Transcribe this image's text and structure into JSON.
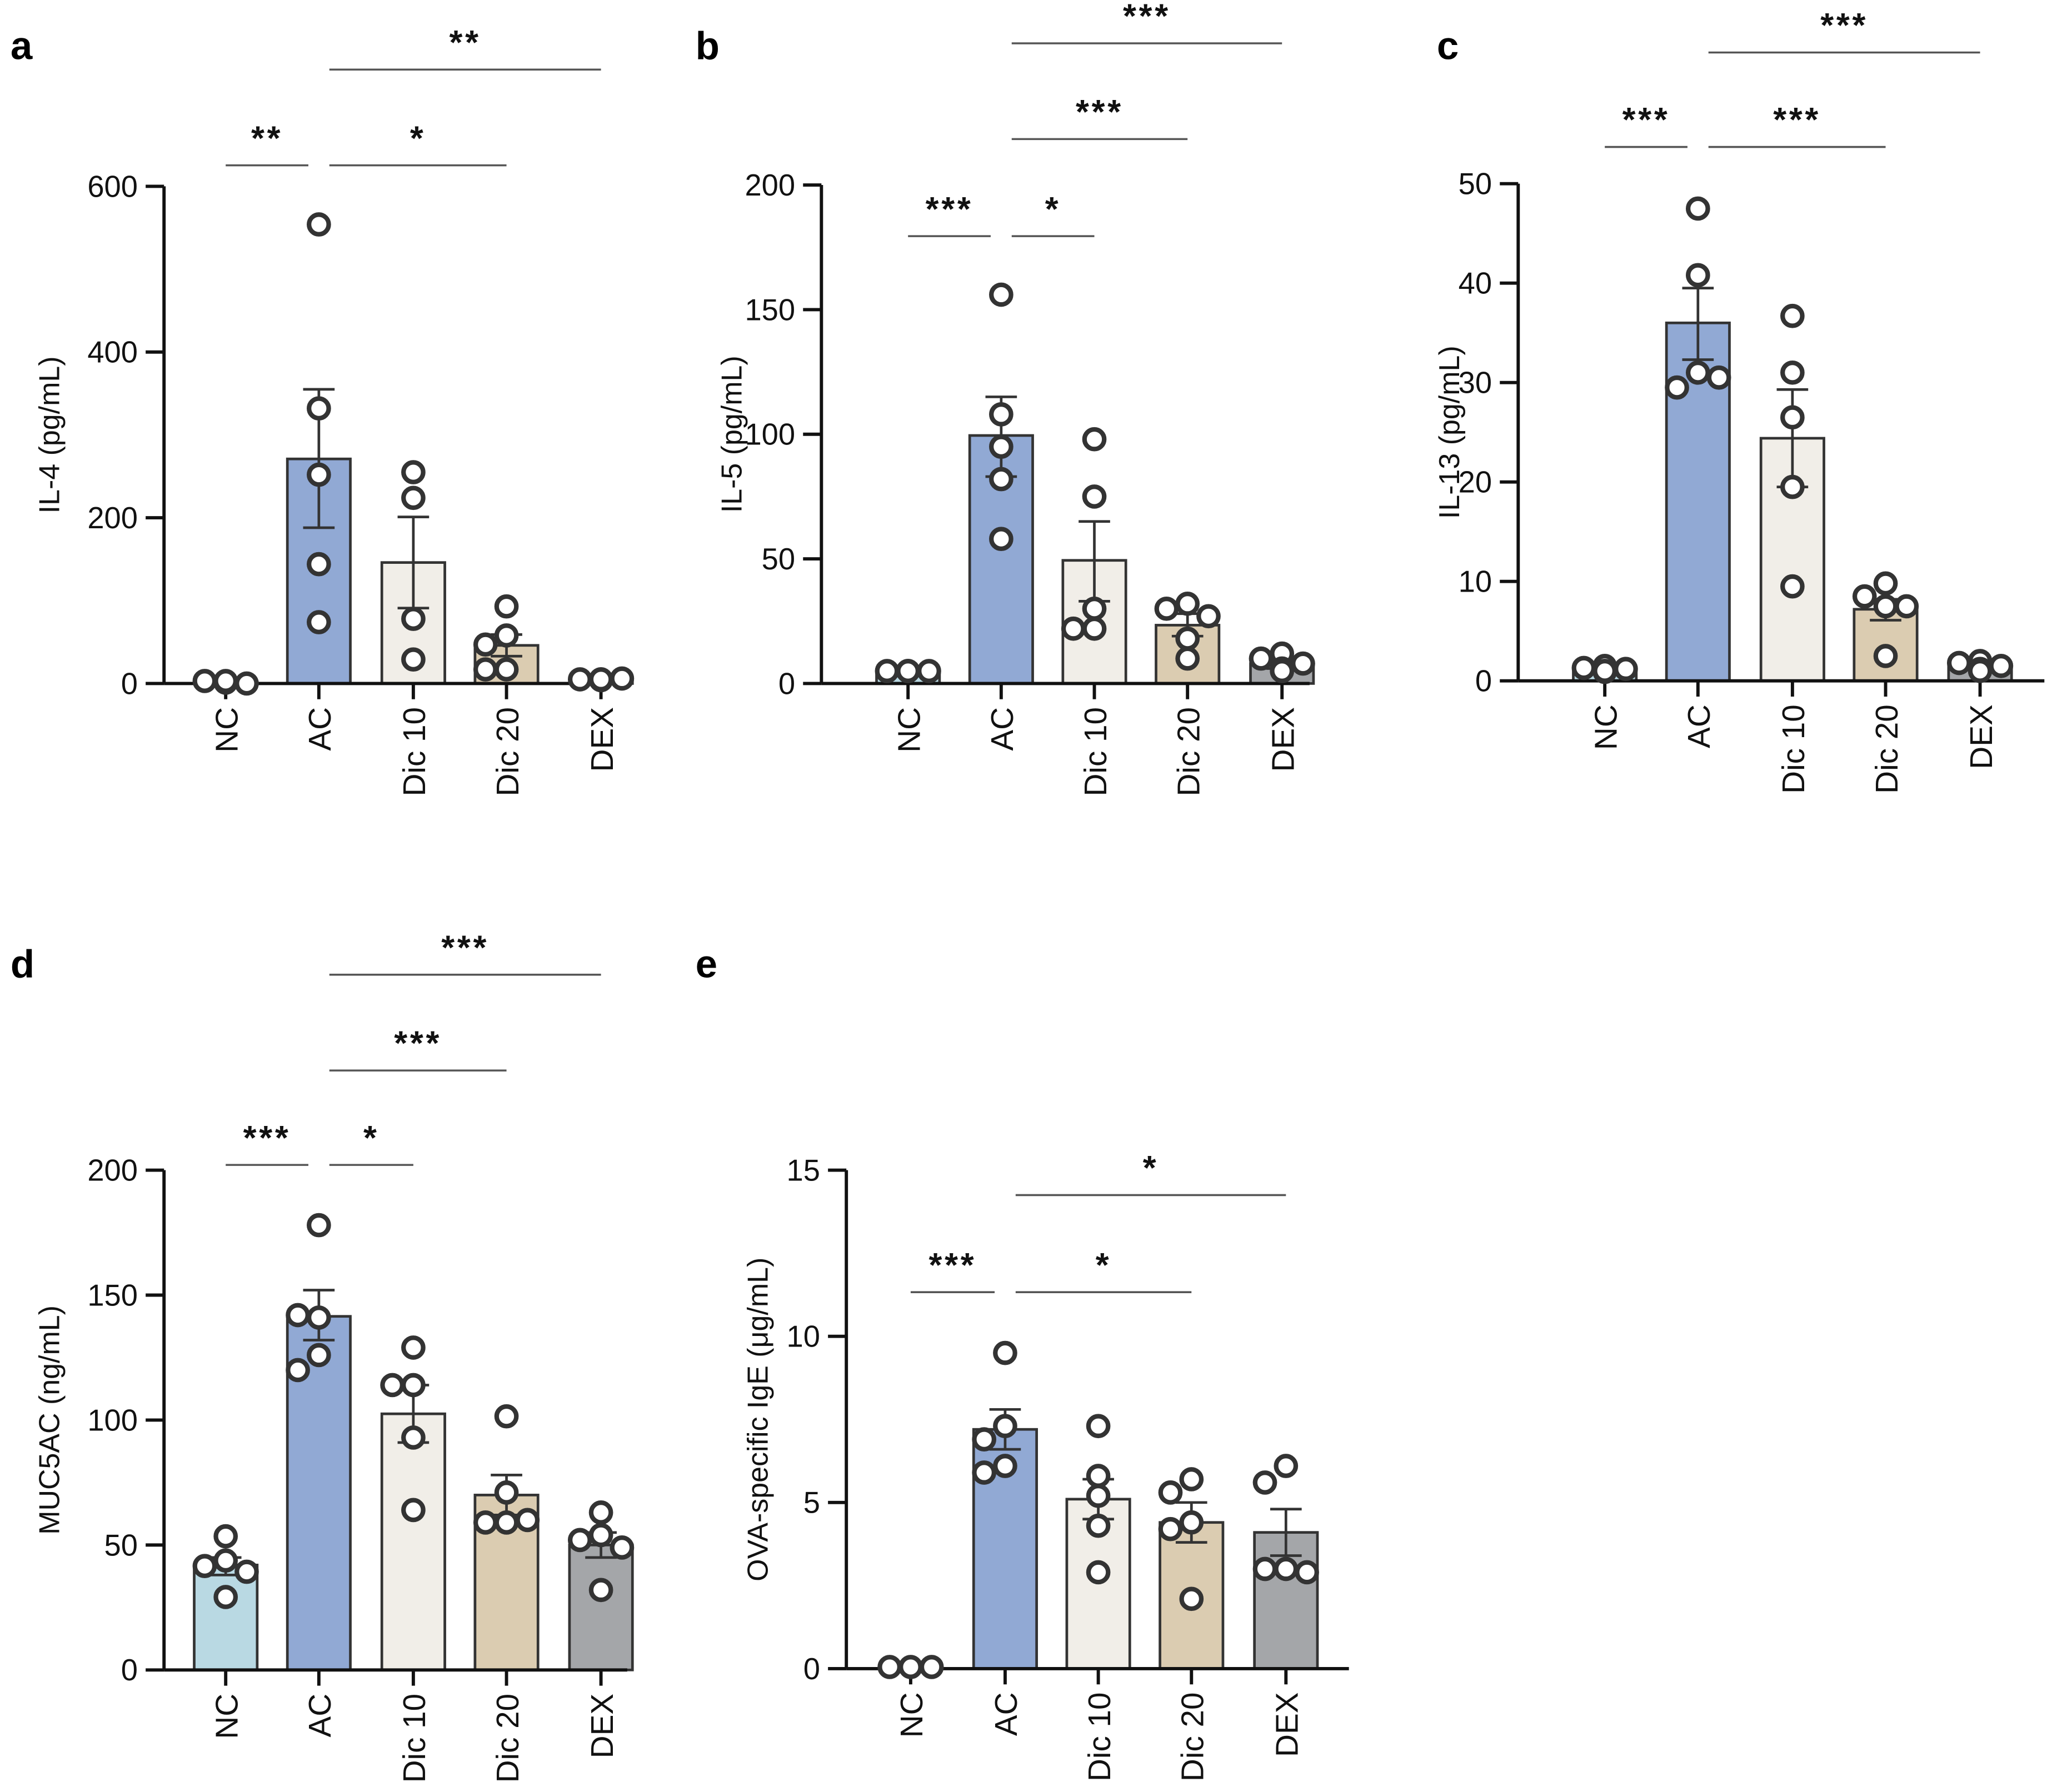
{
  "chart_data": [
    {
      "panel": "a",
      "type": "bar",
      "ylabel": "IL-4 (pg/mL)",
      "ylim": [
        0,
        600
      ],
      "yticks": [
        0,
        200,
        400,
        600
      ],
      "categories": [
        "NC",
        "AC",
        "Dic 10",
        "Dic 20",
        "DEX"
      ],
      "means": [
        2,
        271,
        146,
        46,
        5
      ],
      "sem_low": [
        1,
        188,
        91,
        33,
        4
      ],
      "sem_high": [
        3,
        355,
        201,
        59,
        6
      ],
      "points": [
        [
          2,
          3,
          0,
          1,
          3
        ],
        [
          554,
          332,
          252,
          144,
          74
        ],
        [
          255,
          224,
          78,
          29
        ],
        [
          93,
          58,
          47,
          17,
          17
        ],
        [
          5,
          5,
          6,
          4,
          5
        ]
      ],
      "significance": [
        {
          "from": 0,
          "to": 1,
          "label": "**"
        },
        {
          "from": 1,
          "to": 3,
          "label": "*"
        },
        {
          "from": 1,
          "to": 4,
          "label": "**"
        }
      ]
    },
    {
      "panel": "b",
      "type": "bar",
      "ylabel": "IL-5 (pg/mL)",
      "ylim": [
        0,
        200
      ],
      "yticks": [
        0,
        50,
        100,
        150,
        200
      ],
      "categories": [
        "NC",
        "AC",
        "Dic 10",
        "Dic 20",
        "DEX"
      ],
      "means": [
        5,
        99.5,
        49.4,
        23.4,
        8
      ],
      "sem_low": [
        4.8,
        83,
        33,
        19,
        6
      ],
      "sem_high": [
        5.2,
        115,
        65,
        28,
        10
      ],
      "points": [
        [
          5,
          5,
          5,
          5,
          5
        ],
        [
          156,
          108,
          95,
          82,
          58
        ],
        [
          98,
          75,
          30,
          22,
          22
        ],
        [
          32,
          30,
          27,
          18,
          10
        ],
        [
          12,
          10,
          8,
          6,
          5
        ]
      ],
      "significance": [
        {
          "from": 0,
          "to": 1,
          "label": "***"
        },
        {
          "from": 1,
          "to": 2,
          "label": "*"
        },
        {
          "from": 1,
          "to": 3,
          "label": "***"
        },
        {
          "from": 1,
          "to": 4,
          "label": "***"
        }
      ]
    },
    {
      "panel": "c",
      "type": "bar",
      "ylabel": "IL-13 (pg/mL)",
      "ylim": [
        0,
        50
      ],
      "yticks": [
        0,
        10,
        20,
        30,
        40,
        50
      ],
      "categories": [
        "NC",
        "AC",
        "Dic 10",
        "Dic 20",
        "DEX"
      ],
      "means": [
        1.2,
        36,
        24.4,
        7.2,
        1.5
      ],
      "sem_low": [
        1.0,
        32.3,
        19.5,
        6.1,
        1.2
      ],
      "sem_high": [
        1.4,
        39.5,
        29.3,
        8.2,
        1.8
      ],
      "points": [
        [
          1.5,
          1.3,
          1.2,
          0.9,
          1.0
        ],
        [
          47.5,
          40.8,
          31,
          29.5,
          30.5
        ],
        [
          36.7,
          31,
          26.5,
          19.5,
          9.5
        ],
        [
          9.8,
          8.5,
          7.5,
          7.5,
          2.5
        ],
        [
          2,
          1.8,
          1.5,
          1.2,
          1.0
        ]
      ],
      "significance": [
        {
          "from": 0,
          "to": 1,
          "label": "***"
        },
        {
          "from": 1,
          "to": 3,
          "label": "***"
        },
        {
          "from": 1,
          "to": 4,
          "label": "***"
        }
      ]
    },
    {
      "panel": "d",
      "type": "bar",
      "ylabel": "MUC5AC (ng/mL)",
      "ylim": [
        0,
        200
      ],
      "yticks": [
        0,
        50,
        100,
        150,
        200
      ],
      "categories": [
        "NC",
        "AC",
        "Dic 10",
        "Dic 20",
        "DEX"
      ],
      "means": [
        42,
        141.5,
        102.5,
        70,
        50
      ],
      "sem_low": [
        38,
        132,
        91,
        62,
        45
      ],
      "sem_high": [
        45,
        152,
        114,
        78,
        55
      ],
      "points": [
        [
          53.5,
          43.8,
          41.6,
          39.3,
          29.2
        ],
        [
          178,
          141,
          142,
          126,
          120
        ],
        [
          129,
          114,
          114,
          93,
          64
        ],
        [
          101.5,
          71,
          59,
          59,
          60
        ],
        [
          63,
          54,
          52,
          49,
          32
        ]
      ],
      "significance": [
        {
          "from": 0,
          "to": 1,
          "label": "***"
        },
        {
          "from": 1,
          "to": 2,
          "label": "*"
        },
        {
          "from": 1,
          "to": 3,
          "label": "***"
        },
        {
          "from": 1,
          "to": 4,
          "label": "***"
        }
      ]
    },
    {
      "panel": "e",
      "type": "bar",
      "ylabel": "OVA-specific IgE (μg/mL)",
      "ylim": [
        0,
        15
      ],
      "yticks": [
        0,
        5,
        10,
        15
      ],
      "categories": [
        "NC",
        "AC",
        "Dic 10",
        "Dic 20",
        "DEX"
      ],
      "means": [
        0.05,
        7.2,
        5.1,
        4.4,
        4.1
      ],
      "sem_low": [
        0.04,
        6.6,
        4.5,
        3.8,
        3.4
      ],
      "sem_high": [
        0.06,
        7.8,
        5.7,
        5.0,
        4.8
      ],
      "points": [
        [
          0.05,
          0.05,
          0.05
        ],
        [
          9.5,
          7.3,
          6.9,
          6.1,
          5.9
        ],
        [
          7.3,
          5.8,
          5.2,
          4.3,
          2.9
        ],
        [
          5.7,
          5.3,
          4.4,
          4.2,
          2.1
        ],
        [
          6.1,
          5.6,
          3.0,
          3.0,
          2.9
        ]
      ],
      "significance": [
        {
          "from": 0,
          "to": 1,
          "label": "***"
        },
        {
          "from": 1,
          "to": 3,
          "label": "*"
        },
        {
          "from": 1,
          "to": 4,
          "label": "*"
        }
      ]
    }
  ],
  "colors": {
    "NC": "#b9d9e3",
    "AC": "#91a9d4",
    "Dic 10": "#f1eee8",
    "Dic 20": "#dbccb1",
    "DEX": "#a4a6a9",
    "outline": "#333333",
    "point_fill": "#ffffff"
  },
  "error_bars": "SEM",
  "points_marker": "open-circle"
}
